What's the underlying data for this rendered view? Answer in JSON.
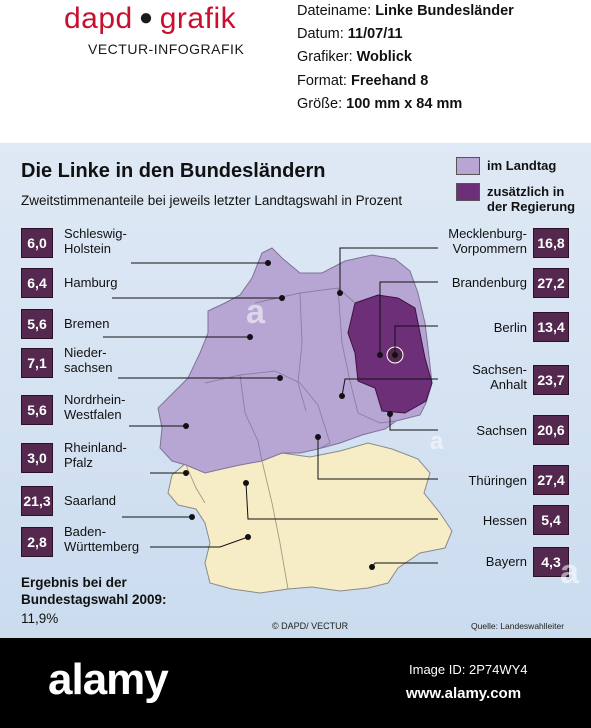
{
  "header": {
    "logo_left": "dapd",
    "logo_right": "grafik",
    "logo_sub": "VECTUR-INFOGRAFIK",
    "meta": [
      {
        "label": "Dateiname: ",
        "value": "Linke Bundesländer"
      },
      {
        "label": "Datum: ",
        "value": "11/07/11"
      },
      {
        "label": "Grafiker: ",
        "value": "Woblick"
      },
      {
        "label": "Format: ",
        "value": "Freehand 8"
      },
      {
        "label": "Größe: ",
        "value": "100 mm x 84 mm"
      }
    ]
  },
  "graphic": {
    "title": "Die Linke in den Bundesländern",
    "subtitle": "Zweitstimmenanteile bei jeweils letzter Landtagswahl in Prozent",
    "legend": [
      {
        "label": "im Landtag",
        "color": "#b7a6d3"
      },
      {
        "label": "zusätzlich in der Regierung",
        "line1": "zusätzlich in",
        "line2": "der Regierung",
        "color": "#6c2f78"
      }
    ],
    "states_left": [
      {
        "name": "Schleswig-Holstein",
        "line1": "Schleswig-",
        "line2": "Holstein",
        "value": "6,0"
      },
      {
        "name": "Hamburg",
        "line1": "Hamburg",
        "line2": "",
        "value": "6,4"
      },
      {
        "name": "Bremen",
        "line1": "Bremen",
        "line2": "",
        "value": "5,6"
      },
      {
        "name": "Niedersachsen",
        "line1": "Nieder-",
        "line2": "sachsen",
        "value": "7,1"
      },
      {
        "name": "Nordrhein-Westfalen",
        "line1": "Nordrhein-",
        "line2": "Westfalen",
        "value": "5,6"
      },
      {
        "name": "Rheinland-Pfalz",
        "line1": "Rheinland-",
        "line2": "Pfalz",
        "value": "3,0"
      },
      {
        "name": "Saarland",
        "line1": "Saarland",
        "line2": "",
        "value": "21,3"
      },
      {
        "name": "Baden-Württemberg",
        "line1": "Baden-",
        "line2": "Württemberg",
        "value": "2,8"
      }
    ],
    "states_right": [
      {
        "name": "Mecklenburg-Vorpommern",
        "line1": "Mecklenburg-",
        "line2": "Vorpommern",
        "value": "16,8"
      },
      {
        "name": "Brandenburg",
        "line1": "Brandenburg",
        "line2": "",
        "value": "27,2"
      },
      {
        "name": "Berlin",
        "line1": "Berlin",
        "line2": "",
        "value": "13,4"
      },
      {
        "name": "Sachsen-Anhalt",
        "line1": "Sachsen-",
        "line2": "Anhalt",
        "value": "23,7"
      },
      {
        "name": "Sachsen",
        "line1": "Sachsen",
        "line2": "",
        "value": "20,6"
      },
      {
        "name": "Thüringen",
        "line1": "Thüringen",
        "line2": "",
        "value": "27,4"
      },
      {
        "name": "Hessen",
        "line1": "Hessen",
        "line2": "",
        "value": "5,4"
      },
      {
        "name": "Bayern",
        "line1": "Bayern",
        "line2": "",
        "value": "4,3"
      }
    ],
    "federal": {
      "line1": "Ergebnis bei der",
      "line2": "Bundestagswahl 2009:",
      "value": "11,9%"
    },
    "copyright": "© DAPD/ VECTUR",
    "source": "Quelle: Landeswahlleiter",
    "colors": {
      "in_landtag": "#b7a6d3",
      "in_regierung": "#6c2f78",
      "not_in_landtag": "#f6edc6",
      "value_box": "#55294f"
    }
  },
  "footer": {
    "logo": "alamy",
    "image_id": "Image ID: 2P74WY4",
    "url": "www.alamy.com"
  }
}
